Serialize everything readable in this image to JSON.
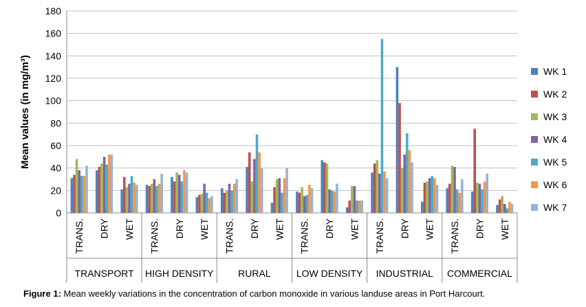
{
  "chart_data": {
    "type": "bar",
    "ylabel": "Mean values (in mg/m³)",
    "xlabel": "",
    "ylim": [
      0,
      180
    ],
    "yticks": [
      "0",
      "20",
      "40",
      "60",
      "80",
      "100",
      "120",
      "140",
      "160",
      "180"
    ],
    "grid": true,
    "legend_position": "right",
    "groups": [
      "TRANSPORT",
      "HIGH DENSITY",
      "RURAL",
      "LOW DENSITY",
      "INDUSTRIAL",
      "COMMERCIAL"
    ],
    "subcategories": [
      "TRANS.",
      "DRY",
      "WET"
    ],
    "series": [
      {
        "name": "WK 1",
        "color": "#4F81BD",
        "values": [
          31,
          38,
          21,
          25,
          32,
          14,
          22,
          41,
          9,
          19,
          47,
          5,
          36,
          130,
          10,
          22,
          19,
          7
        ]
      },
      {
        "name": "WK 2",
        "color": "#C0504D",
        "values": [
          34,
          41,
          32,
          24,
          28,
          16,
          18,
          54,
          23,
          18,
          45,
          11,
          44,
          98,
          27,
          26,
          75,
          12
        ]
      },
      {
        "name": "WK 3",
        "color": "#9BBB59",
        "values": [
          48,
          44,
          23,
          26,
          36,
          17,
          20,
          28,
          30,
          23,
          44,
          24,
          47,
          40,
          28,
          42,
          27,
          15
        ]
      },
      {
        "name": "WK 4",
        "color": "#8064A2",
        "values": [
          38,
          50,
          26,
          30,
          34,
          26,
          26,
          48,
          31,
          15,
          21,
          24,
          35,
          52,
          31,
          41,
          26,
          8
        ]
      },
      {
        "name": "WK 5",
        "color": "#4BACC6",
        "values": [
          33,
          43,
          33,
          24,
          28,
          18,
          20,
          70,
          18,
          16,
          20,
          11,
          155,
          71,
          33,
          21,
          21,
          4
        ]
      },
      {
        "name": "WK 6",
        "color": "#F79646",
        "values": [
          33,
          52,
          27,
          26,
          38,
          13,
          26,
          54,
          31,
          25,
          19,
          11,
          37,
          56,
          31,
          18,
          28,
          10
        ]
      },
      {
        "name": "WK 7",
        "color": "#95B3D7",
        "values": [
          42,
          52,
          25,
          35,
          36,
          15,
          30,
          40,
          40,
          22,
          26,
          11,
          31,
          45,
          25,
          30,
          35,
          8
        ]
      }
    ]
  },
  "caption": {
    "label": "Figure 1:",
    "text": " Mean weekly variations in the concentration of carbon monoxide in various landuse areas in Port Harcourt."
  }
}
